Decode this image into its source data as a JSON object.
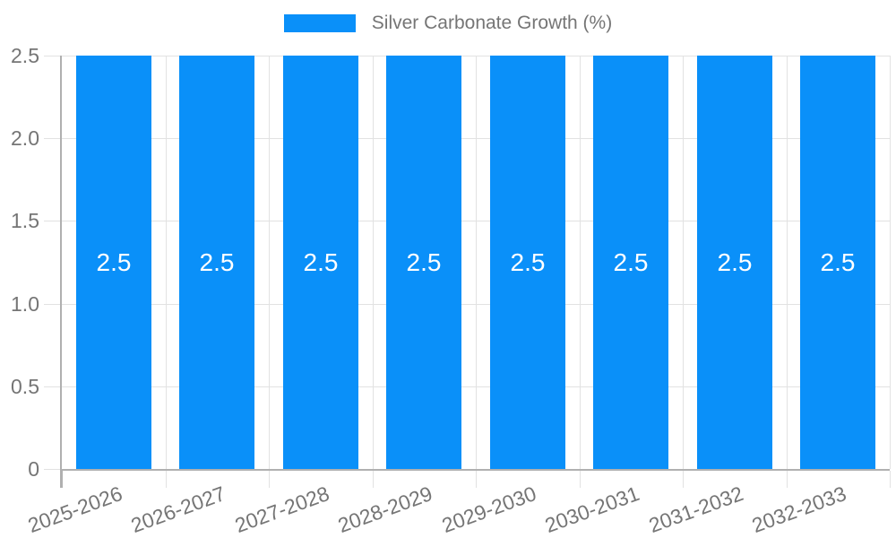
{
  "legend": {
    "label": "Silver Carbonate Growth (%)"
  },
  "chart_data": {
    "type": "bar",
    "title": "Silver Carbonate Growth (%)",
    "categories": [
      "2025-2026",
      "2026-2027",
      "2027-2028",
      "2028-2029",
      "2029-2030",
      "2030-2031",
      "2031-2032",
      "2032-2033"
    ],
    "values": [
      2.5,
      2.5,
      2.5,
      2.5,
      2.5,
      2.5,
      2.5,
      2.5
    ],
    "bar_labels": [
      "2.5",
      "2.5",
      "2.5",
      "2.5",
      "2.5",
      "2.5",
      "2.5",
      "2.5"
    ],
    "xlabel": "",
    "ylabel": "",
    "ylim": [
      0,
      2.5
    ],
    "ytick_values": [
      0,
      0.5,
      1.0,
      1.5,
      2.0,
      2.5
    ],
    "ytick_labels": [
      "0",
      "0.5",
      "1.0",
      "1.5",
      "2.0",
      "2.5"
    ],
    "grid": true,
    "legend_position": "top",
    "colors": {
      "bar": "#0a90f9",
      "gridline": "#e2e2e2",
      "axis_line": "#b0b0b0",
      "axis_text": "#757575",
      "bar_label_text": "#ffffff",
      "background": "#ffffff"
    }
  }
}
